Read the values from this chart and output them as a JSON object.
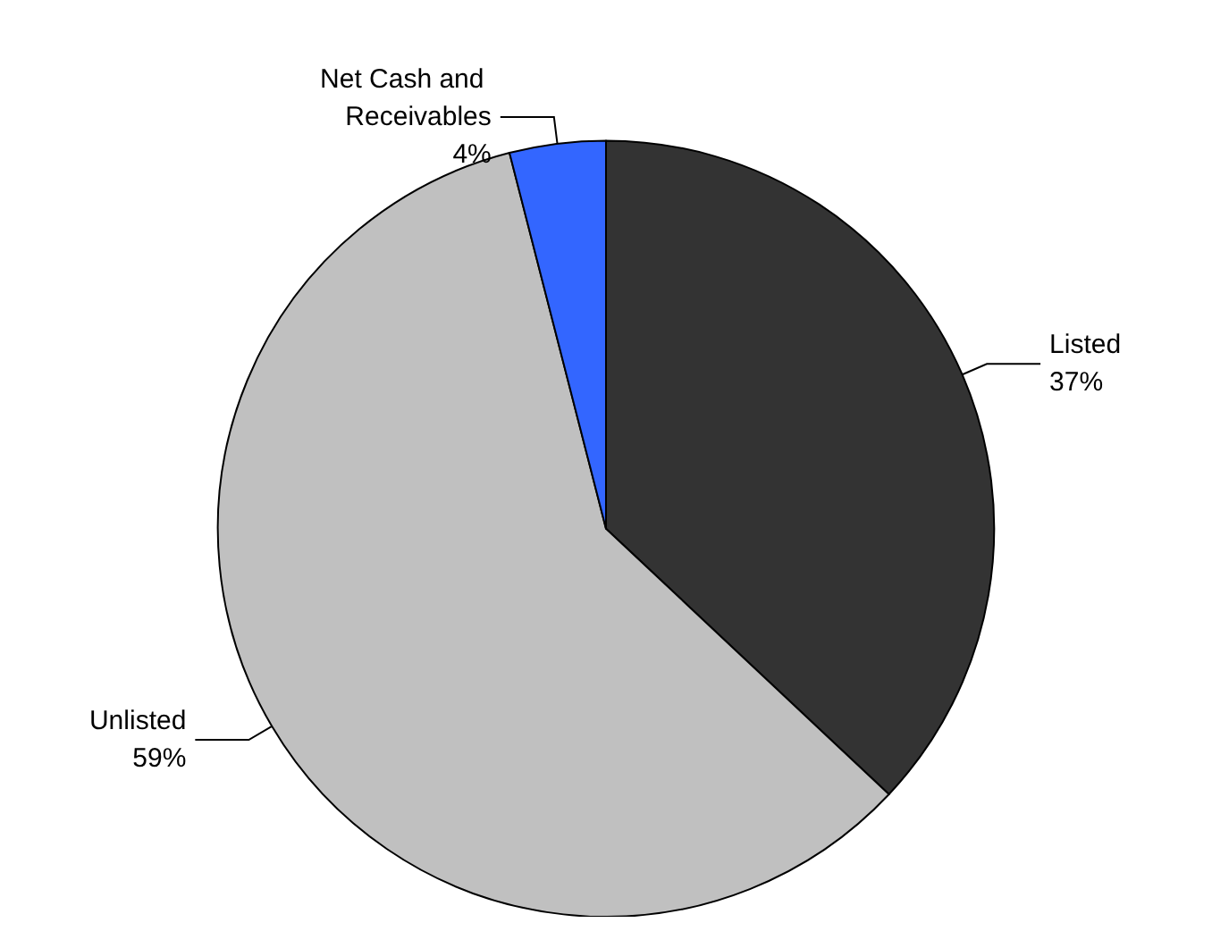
{
  "chart_data": {
    "type": "pie",
    "categories": [
      "Listed",
      "Unlisted",
      "Net Cash and Receivables"
    ],
    "values": [
      37,
      59,
      4
    ],
    "value_labels": [
      "37%",
      "59%",
      "4%"
    ],
    "colors": [
      "#333333",
      "#c0c0c0",
      "#3366ff"
    ],
    "legend": false
  }
}
